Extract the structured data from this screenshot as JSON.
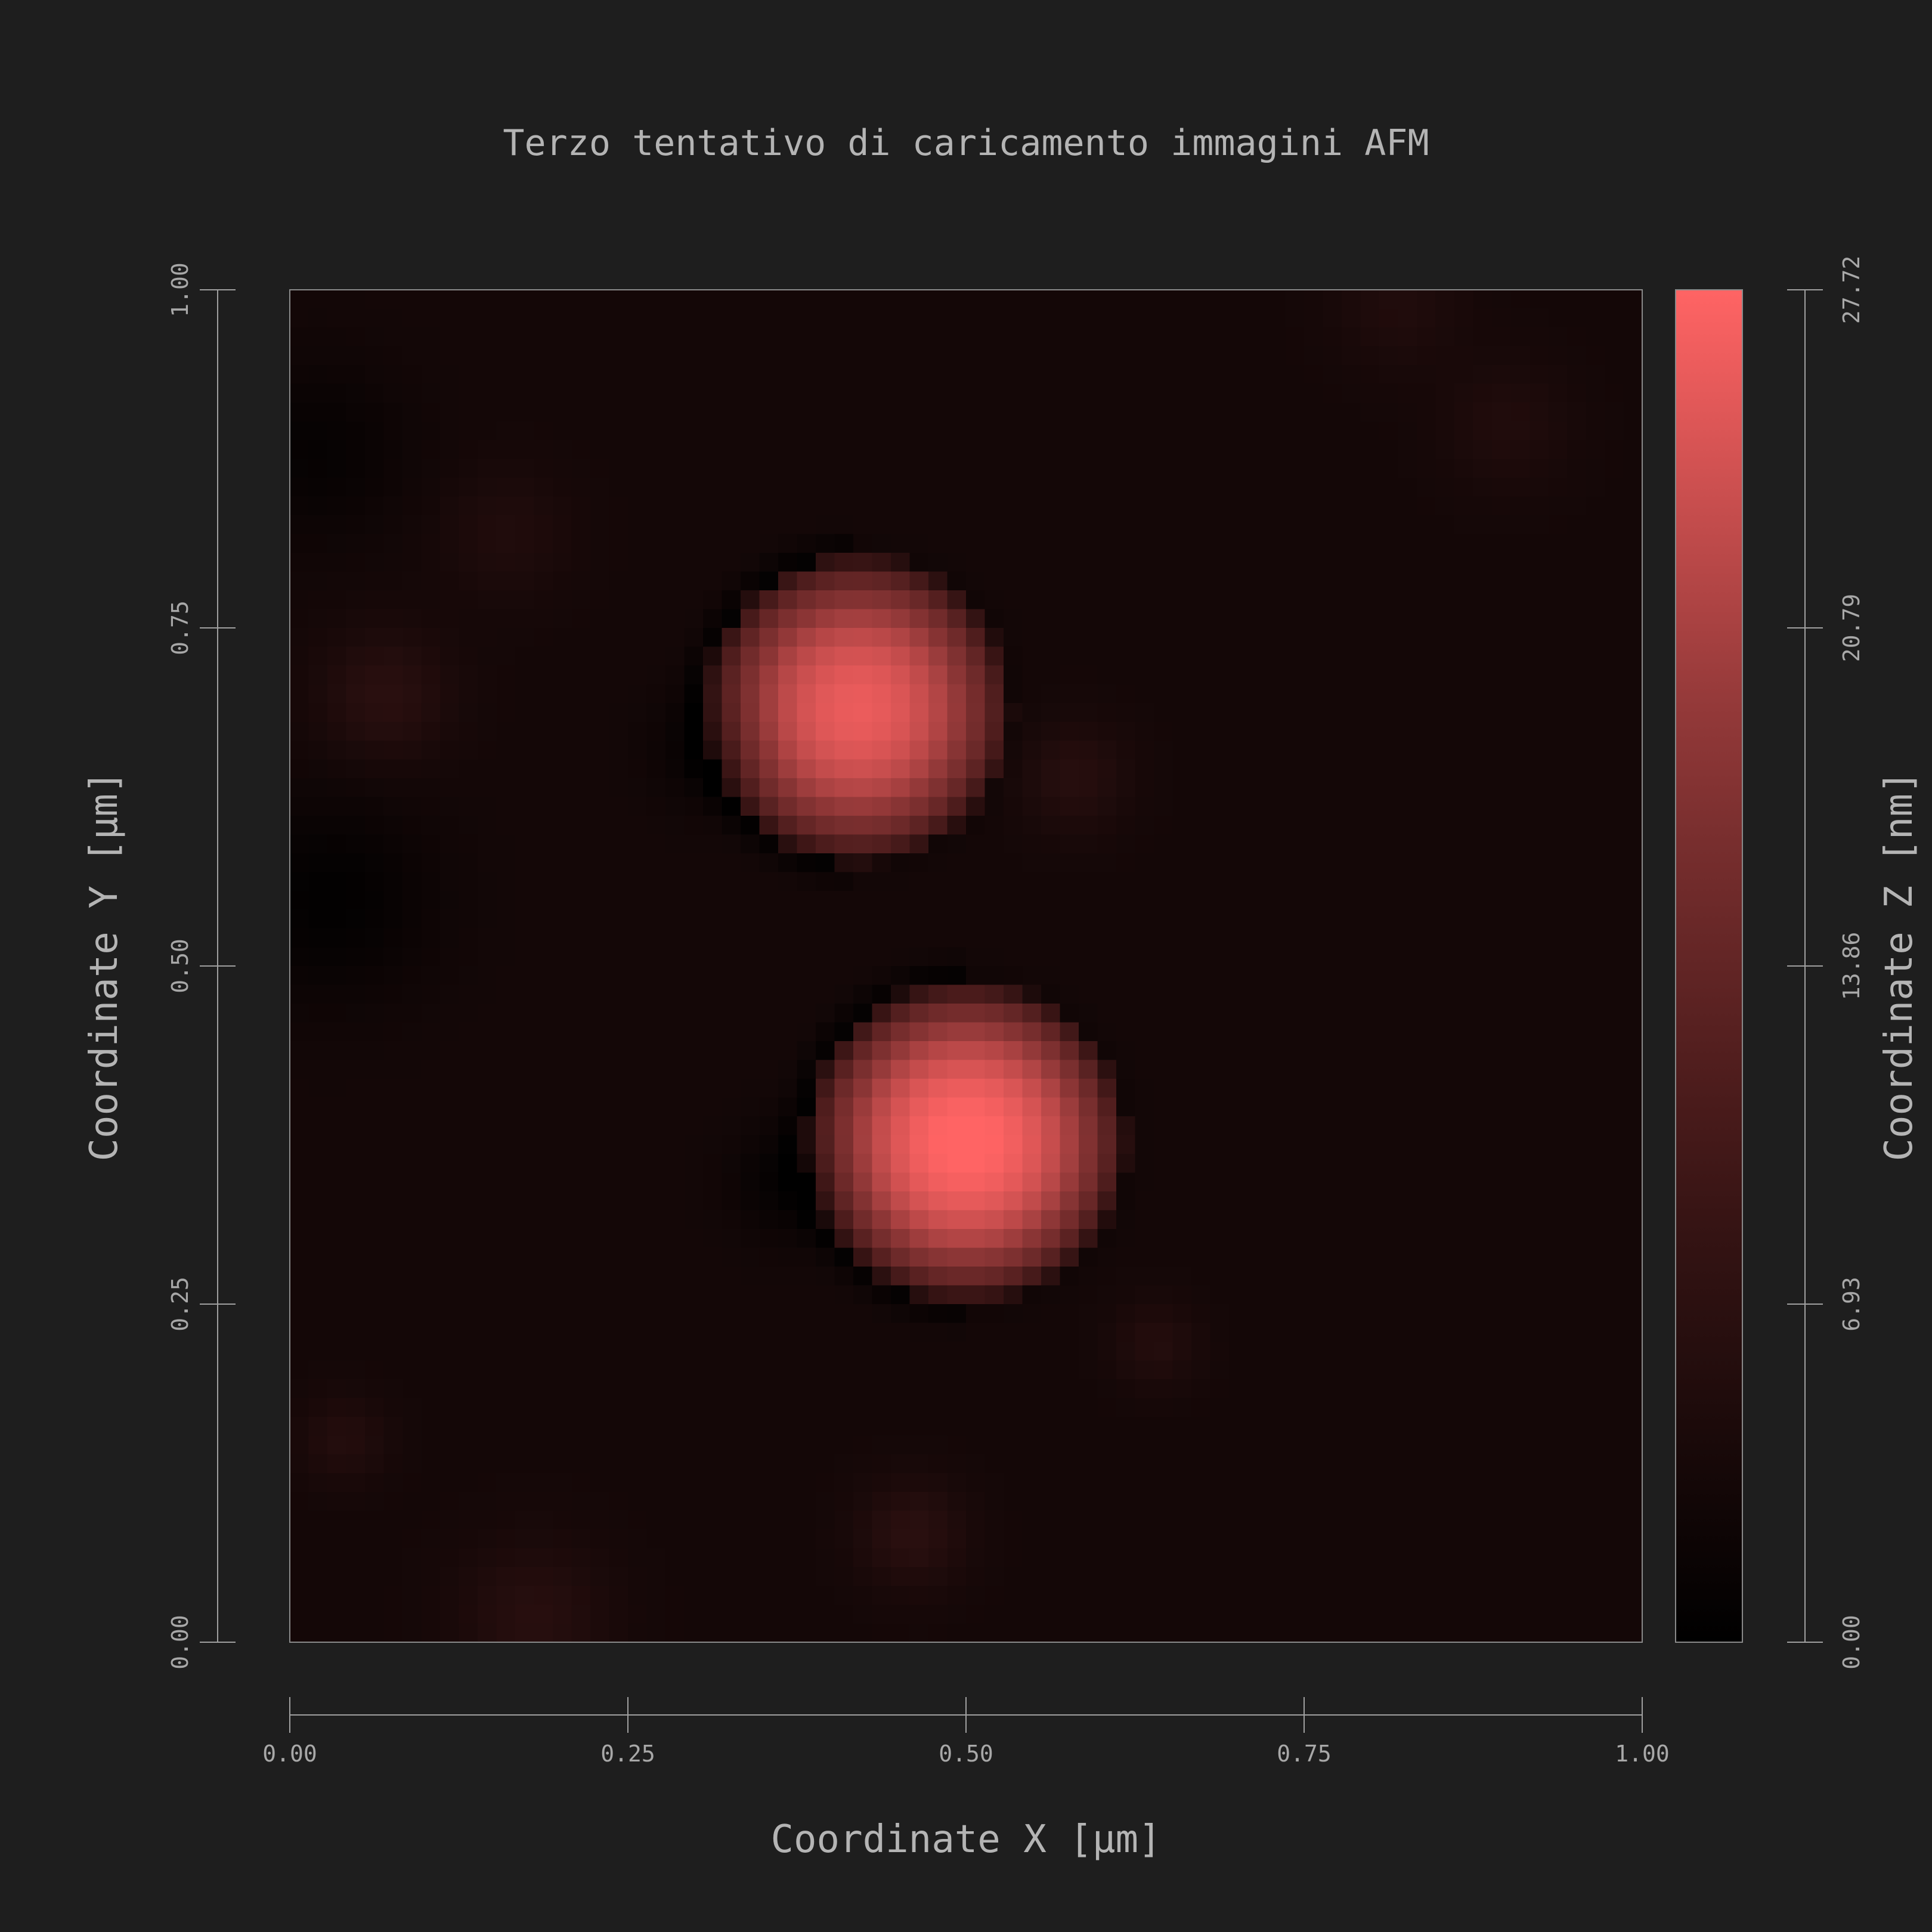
{
  "chart_data": {
    "type": "heatmap",
    "title": "Terzo tentativo di caricamento immagini AFM",
    "xlabel": "Coordinate X [µm]",
    "ylabel": "Coordinate Y [µm]",
    "colorbar_label": "Coordinate Z [nm]",
    "xlim": [
      0,
      1
    ],
    "ylim": [
      0,
      1
    ],
    "zlim": [
      0,
      27.72
    ],
    "x_ticks": [
      0,
      0.25,
      0.5,
      0.75,
      1
    ],
    "x_tick_labels": [
      "0.00",
      "0.25",
      "0.50",
      "0.75",
      "1.00"
    ],
    "y_ticks": [
      0,
      0.25,
      0.5,
      0.75,
      1
    ],
    "y_tick_labels": [
      "0.00",
      "0.25",
      "0.50",
      "0.75",
      "1.00"
    ],
    "z_ticks": [
      0,
      6.93,
      13.86,
      20.79,
      27.72
    ],
    "z_tick_labels": [
      "0.00",
      "6.93",
      "13.86",
      "20.79",
      "27.72"
    ],
    "colormap": [
      "#000000",
      "#3a1515",
      "#8a3535",
      "#ff6464"
    ],
    "grid_resolution": 72,
    "background_level_nm": 3.2,
    "particles": [
      {
        "x": 0.42,
        "y": 0.69,
        "radius": 0.115,
        "height_nm": 25.5
      },
      {
        "x": 0.5,
        "y": 0.37,
        "radius": 0.12,
        "height_nm": 27.72
      }
    ],
    "faint_features": [
      {
        "x": 0.07,
        "y": 0.7,
        "radius": 0.06,
        "height_nm": 3.5
      },
      {
        "x": 0.58,
        "y": 0.64,
        "radius": 0.05,
        "height_nm": 3.0
      },
      {
        "x": 0.18,
        "y": 0.02,
        "radius": 0.07,
        "height_nm": 3.0
      },
      {
        "x": 0.46,
        "y": 0.08,
        "radius": 0.05,
        "height_nm": 3.5
      },
      {
        "x": 0.64,
        "y": 0.22,
        "radius": 0.04,
        "height_nm": 2.5
      },
      {
        "x": 0.04,
        "y": 0.15,
        "radius": 0.04,
        "height_nm": 2.5
      },
      {
        "x": 0.82,
        "y": 0.99,
        "radius": 0.06,
        "height_nm": 2.0
      },
      {
        "x": 0.9,
        "y": 0.9,
        "radius": 0.06,
        "height_nm": 2.0
      },
      {
        "x": 0.16,
        "y": 0.82,
        "radius": 0.06,
        "height_nm": 2.0
      }
    ],
    "dark_features": [
      {
        "x": 0.03,
        "y": 0.55,
        "radius": 0.09,
        "depth_nm": 2.8
      },
      {
        "x": 0.37,
        "y": 0.34,
        "radius": 0.05,
        "depth_nm": 2.5
      },
      {
        "x": 0.31,
        "y": 0.66,
        "radius": 0.05,
        "depth_nm": 2.2
      },
      {
        "x": 0.02,
        "y": 0.88,
        "radius": 0.08,
        "depth_nm": 2.2
      }
    ]
  }
}
